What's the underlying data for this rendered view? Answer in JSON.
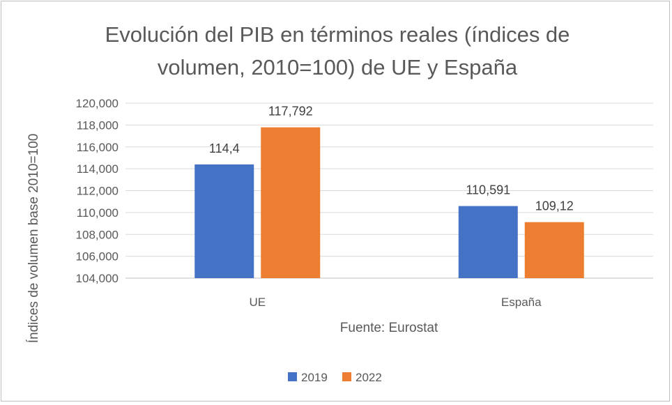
{
  "chart_data": {
    "type": "bar",
    "title_lines": [
      "Evolución del PIB en términos reales (índices de",
      "volumen, 2010=100) de UE y España"
    ],
    "xlabel": "Fuente: Eurostat",
    "ylabel": "Índices de volumen base 2010=100",
    "categories": [
      "UE",
      "España"
    ],
    "series": [
      {
        "name": "2019",
        "color": "#4472C4",
        "values": [
          114.4,
          110.591
        ],
        "labels": [
          "114,4",
          "110,591"
        ]
      },
      {
        "name": "2022",
        "color": "#ED7D31",
        "values": [
          117.792,
          109.12
        ],
        "labels": [
          "117,792",
          "109,12"
        ]
      }
    ],
    "ylim": [
      104,
      120
    ],
    "yticks": [
      104,
      106,
      108,
      110,
      112,
      114,
      116,
      118,
      120
    ],
    "ytick_labels": [
      "104,000",
      "106,000",
      "108,000",
      "110,000",
      "112,000",
      "114,000",
      "116,000",
      "118,000",
      "120,000"
    ],
    "grid": true,
    "legend_placement": "bottom",
    "gridline_color": "#D9D9D9"
  }
}
